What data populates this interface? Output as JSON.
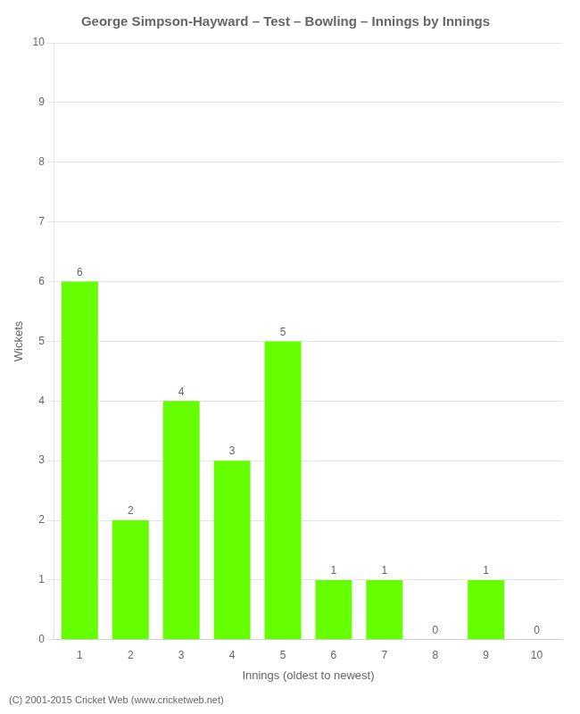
{
  "chart_data": {
    "type": "bar",
    "title": "George Simpson-Hayward – Test – Bowling – Innings by Innings",
    "xlabel": "Innings (oldest to newest)",
    "ylabel": "Wickets",
    "categories": [
      1,
      2,
      3,
      4,
      5,
      6,
      7,
      8,
      9,
      10
    ],
    "values": [
      6,
      2,
      4,
      3,
      5,
      1,
      1,
      0,
      1,
      0
    ],
    "color": "#66ff00",
    "ylim": [
      0,
      10
    ],
    "yticks": [
      0,
      1,
      2,
      3,
      4,
      5,
      6,
      7,
      8,
      9,
      10
    ],
    "grid": true,
    "data_labels": true,
    "annotations": [
      "(C) 2001-2015 Cricket Web (www.cricketweb.net)"
    ]
  }
}
